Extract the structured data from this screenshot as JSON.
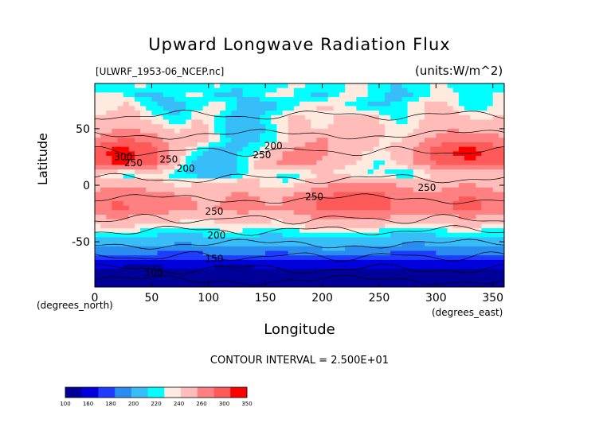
{
  "chart_data": {
    "type": "heatmap",
    "title": "Upward Longwave Radiation Flux",
    "file_label": "[ULWRF_1953-06_NCEP.nc]",
    "units_label": "(units:W/m^2)",
    "xlabel": "Longitude",
    "ylabel": "Latitude",
    "x_unit_label": "(degrees_north)",
    "x_unit_label_right": "(degrees_east)",
    "xlim": [
      0,
      360
    ],
    "ylim": [
      -90,
      90
    ],
    "x_ticks": [
      0,
      50,
      100,
      150,
      200,
      250,
      300,
      350
    ],
    "y_ticks": [
      -50,
      0,
      50
    ],
    "contour_interval_text": "CONTOUR INTERVAL = 2.500E+01",
    "contour_labels": [
      {
        "text": "300",
        "x": 25,
        "y": 22
      },
      {
        "text": "250",
        "x": 34,
        "y": 17
      },
      {
        "text": "200",
        "x": 80,
        "y": 12
      },
      {
        "text": "250",
        "x": 65,
        "y": 20
      },
      {
        "text": "250",
        "x": 147,
        "y": 24
      },
      {
        "text": "200",
        "x": 157,
        "y": 32
      },
      {
        "text": "250",
        "x": 292,
        "y": -5
      },
      {
        "text": "250",
        "x": 105,
        "y": -26
      },
      {
        "text": "250",
        "x": 193,
        "y": -13
      },
      {
        "text": "200",
        "x": 107,
        "y": -47
      },
      {
        "text": "150",
        "x": 105,
        "y": -68
      },
      {
        "text": "100",
        "x": 52,
        "y": -80
      }
    ],
    "colorbar": {
      "levels": [
        "100",
        "160",
        "180",
        "200",
        "220",
        "240",
        "260",
        "300",
        "350"
      ],
      "colors": [
        "#000099",
        "#0000dd",
        "#1e3cff",
        "#2b8cf0",
        "#37bdf8",
        "#00ffff",
        "#ffeae0",
        "#ffbcb8",
        "#ff8080",
        "#ff5a5a",
        "#ff0000"
      ]
    },
    "bands": [
      {
        "lat": 90,
        "values": [
          220,
          220,
          225,
          230,
          235,
          230,
          225,
          220,
          220,
          225,
          230,
          235,
          225,
          220,
          220,
          220,
          225,
          230,
          235,
          230,
          225,
          225,
          230,
          235,
          230,
          225,
          220,
          220,
          225,
          230,
          230,
          230,
          225,
          225,
          225,
          225
        ]
      },
      {
        "lat": 80,
        "values": [
          230,
          235,
          232,
          225,
          218,
          215,
          220,
          225,
          230,
          232,
          225,
          218,
          215,
          220,
          225,
          230,
          235,
          232,
          225,
          220,
          218,
          225,
          232,
          235,
          230,
          225,
          218,
          215,
          220,
          228,
          235,
          235,
          230,
          225,
          225,
          230
        ]
      },
      {
        "lat": 70,
        "values": [
          230,
          230,
          240,
          245,
          235,
          225,
          215,
          210,
          218,
          225,
          232,
          240,
          230,
          215,
          205,
          210,
          218,
          225,
          230,
          238,
          245,
          240,
          230,
          225,
          218,
          215,
          220,
          228,
          235,
          242,
          245,
          240,
          232,
          225,
          225,
          230
        ]
      },
      {
        "lat": 60,
        "values": [
          240,
          245,
          250,
          248,
          240,
          235,
          230,
          220,
          225,
          240,
          235,
          225,
          215,
          200,
          210,
          225,
          235,
          240,
          245,
          238,
          232,
          240,
          245,
          250,
          248,
          240,
          230,
          225,
          232,
          240,
          248,
          252,
          248,
          240,
          238,
          240
        ]
      },
      {
        "lat": 50,
        "values": [
          245,
          252,
          258,
          260,
          255,
          250,
          245,
          235,
          240,
          248,
          240,
          225,
          210,
          205,
          215,
          220,
          232,
          240,
          245,
          240,
          235,
          245,
          250,
          252,
          250,
          245,
          238,
          232,
          238,
          245,
          252,
          258,
          255,
          250,
          245,
          248
        ]
      },
      {
        "lat": 40,
        "values": [
          265,
          272,
          280,
          285,
          278,
          270,
          262,
          250,
          248,
          250,
          240,
          230,
          220,
          215,
          218,
          222,
          230,
          240,
          250,
          258,
          262,
          258,
          252,
          248,
          245,
          240,
          238,
          240,
          248,
          258,
          268,
          275,
          278,
          280,
          278,
          272
        ]
      },
      {
        "lat": 30,
        "values": [
          290,
          300,
          308,
          305,
          298,
          290,
          275,
          255,
          240,
          225,
          215,
          212,
          215,
          222,
          230,
          240,
          250,
          262,
          270,
          272,
          265,
          258,
          250,
          245,
          240,
          238,
          242,
          250,
          262,
          278,
          292,
          300,
          305,
          308,
          302,
          295
        ]
      },
      {
        "lat": 20,
        "values": [
          285,
          295,
          302,
          300,
          295,
          285,
          268,
          245,
          228,
          212,
          205,
          208,
          215,
          225,
          238,
          250,
          262,
          270,
          268,
          262,
          255,
          250,
          245,
          240,
          232,
          228,
          235,
          245,
          258,
          270,
          282,
          290,
          295,
          298,
          295,
          290
        ]
      },
      {
        "lat": 10,
        "values": [
          240,
          232,
          225,
          220,
          228,
          238,
          232,
          225,
          220,
          215,
          210,
          205,
          212,
          225,
          240,
          235,
          228,
          222,
          228,
          235,
          240,
          238,
          235,
          232,
          228,
          232,
          228,
          220,
          225,
          232,
          240,
          245,
          248,
          245,
          240,
          238
        ]
      },
      {
        "lat": 0,
        "values": [
          250,
          255,
          260,
          258,
          252,
          248,
          245,
          240,
          238,
          242,
          245,
          250,
          255,
          252,
          245,
          238,
          232,
          235,
          242,
          250,
          258,
          262,
          265,
          268,
          270,
          268,
          262,
          258,
          252,
          248,
          250,
          255,
          260,
          262,
          258,
          252
        ]
      },
      {
        "lat": -10,
        "values": [
          268,
          275,
          280,
          278,
          275,
          270,
          268,
          265,
          262,
          258,
          255,
          258,
          262,
          265,
          262,
          258,
          255,
          262,
          270,
          278,
          282,
          285,
          288,
          290,
          288,
          285,
          280,
          275,
          270,
          268,
          272,
          276,
          280,
          282,
          278,
          272
        ]
      },
      {
        "lat": -20,
        "values": [
          272,
          278,
          282,
          280,
          278,
          275,
          272,
          268,
          265,
          260,
          258,
          262,
          265,
          268,
          266,
          262,
          260,
          266,
          272,
          278,
          282,
          284,
          286,
          288,
          286,
          284,
          280,
          276,
          272,
          270,
          274,
          278,
          282,
          284,
          280,
          276
        ]
      },
      {
        "lat": -30,
        "values": [
          250,
          255,
          258,
          256,
          252,
          250,
          248,
          245,
          242,
          240,
          242,
          245,
          248,
          250,
          248,
          245,
          242,
          246,
          250,
          255,
          258,
          260,
          262,
          262,
          260,
          258,
          255,
          252,
          250,
          248,
          250,
          252,
          255,
          256,
          254,
          252
        ]
      },
      {
        "lat": -40,
        "values": [
          230,
          232,
          234,
          232,
          230,
          228,
          226,
          224,
          222,
          225,
          228,
          230,
          232,
          230,
          228,
          226,
          225,
          228,
          230,
          232,
          234,
          235,
          235,
          234,
          232,
          230,
          228,
          226,
          225,
          226,
          228,
          230,
          232,
          232,
          230,
          228
        ]
      },
      {
        "lat": -50,
        "values": [
          212,
          214,
          215,
          214,
          212,
          210,
          208,
          206,
          205,
          208,
          210,
          212,
          214,
          212,
          210,
          208,
          207,
          210,
          212,
          214,
          215,
          216,
          215,
          214,
          212,
          210,
          208,
          206,
          205,
          206,
          208,
          210,
          212,
          212,
          210,
          210
        ]
      },
      {
        "lat": -60,
        "values": [
          185,
          188,
          190,
          188,
          186,
          182,
          178,
          176,
          175,
          178,
          182,
          186,
          188,
          186,
          184,
          180,
          178,
          180,
          184,
          188,
          190,
          192,
          190,
          188,
          186,
          184,
          180,
          176,
          175,
          176,
          180,
          184,
          186,
          186,
          185,
          184
        ]
      },
      {
        "lat": -70,
        "values": [
          150,
          148,
          145,
          142,
          140,
          142,
          145,
          148,
          150,
          148,
          145,
          142,
          140,
          142,
          145,
          148,
          150,
          148,
          146,
          144,
          145,
          148,
          150,
          152,
          150,
          148,
          146,
          144,
          146,
          150,
          152,
          150,
          148,
          146,
          148,
          150
        ]
      },
      {
        "lat": -80,
        "values": [
          130,
          128,
          125,
          122,
          120,
          118,
          120,
          122,
          125,
          128,
          130,
          128,
          125,
          122,
          120,
          122,
          125,
          128,
          130,
          132,
          130,
          128,
          126,
          124,
          126,
          128,
          130,
          132,
          130,
          128,
          126,
          124,
          126,
          128,
          130,
          130
        ]
      },
      {
        "lat": -90,
        "values": [
          120,
          118,
          116,
          115,
          114,
          114,
          115,
          116,
          118,
          120,
          121,
          120,
          118,
          116,
          115,
          116,
          118,
          120,
          121,
          122,
          121,
          120,
          119,
          118,
          119,
          120,
          121,
          122,
          121,
          120,
          118,
          117,
          118,
          119,
          120,
          120
        ]
      }
    ]
  }
}
